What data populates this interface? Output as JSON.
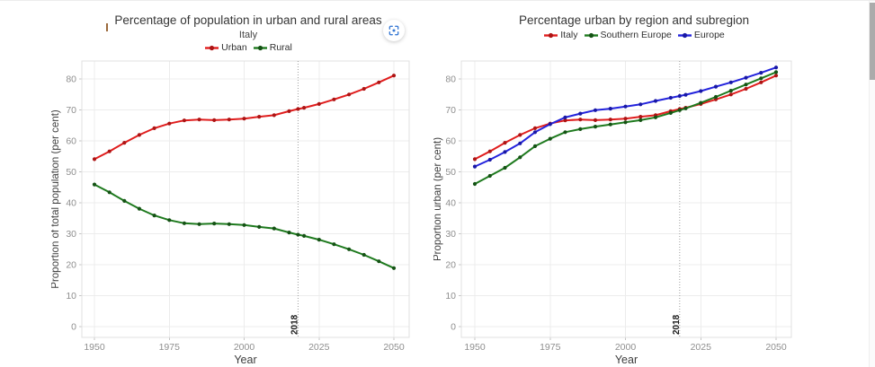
{
  "page": {
    "background": "#ffffff"
  },
  "controls": {
    "focus_button_icon": "focus-frame-icon",
    "focus_button_color": "#3a7bd5"
  },
  "chart_data": [
    {
      "type": "line",
      "title": "Percentage of population in urban and rural areas",
      "subtitle": "Italy",
      "xlabel": "Year",
      "ylabel": "Proportion of total population (per cent)",
      "xlim": [
        1950,
        2050
      ],
      "ylim": [
        0,
        80
      ],
      "xticks": [
        1950,
        1975,
        2000,
        2025,
        2050
      ],
      "yticks": [
        0,
        10,
        20,
        30,
        40,
        50,
        60,
        70,
        80
      ],
      "grid": true,
      "legend_position": "top",
      "vline": {
        "x": 2018,
        "label": "2018",
        "color": "#9e9e9e"
      },
      "x": [
        1950,
        1955,
        1960,
        1965,
        1970,
        1975,
        1980,
        1985,
        1990,
        1995,
        2000,
        2005,
        2010,
        2015,
        2018,
        2020,
        2025,
        2030,
        2035,
        2040,
        2045,
        2050
      ],
      "series": [
        {
          "name": "Urban",
          "color": "#e01d1d",
          "marker_color": "#ad1414",
          "values": [
            54.1,
            56.6,
            59.4,
            61.9,
            64.1,
            65.6,
            66.6,
            66.9,
            66.7,
            66.9,
            67.2,
            67.8,
            68.3,
            69.6,
            70.3,
            70.7,
            71.9,
            73.4,
            75.0,
            76.8,
            78.9,
            81.1
          ]
        },
        {
          "name": "Rural",
          "color": "#1e7a1e",
          "marker_color": "#145214",
          "values": [
            45.9,
            43.4,
            40.6,
            38.1,
            35.9,
            34.4,
            33.4,
            33.1,
            33.3,
            33.1,
            32.8,
            32.2,
            31.7,
            30.4,
            29.7,
            29.3,
            28.1,
            26.6,
            25.0,
            23.2,
            21.1,
            18.9
          ]
        }
      ]
    },
    {
      "type": "line",
      "title": "Percentage urban by region and subregion",
      "xlabel": "Year",
      "ylabel": "Proportion urban (per cent)",
      "xlim": [
        1950,
        2050
      ],
      "ylim": [
        0,
        80
      ],
      "xticks": [
        1950,
        1975,
        2000,
        2025,
        2050
      ],
      "yticks": [
        0,
        10,
        20,
        30,
        40,
        50,
        60,
        70,
        80
      ],
      "grid": true,
      "legend_position": "top",
      "vline": {
        "x": 2018,
        "label": "2018",
        "color": "#9e9e9e"
      },
      "x": [
        1950,
        1955,
        1960,
        1965,
        1970,
        1975,
        1980,
        1985,
        1990,
        1995,
        2000,
        2005,
        2010,
        2015,
        2018,
        2020,
        2025,
        2030,
        2035,
        2040,
        2045,
        2050
      ],
      "series": [
        {
          "name": "Italy",
          "color": "#e01d1d",
          "marker_color": "#ad1414",
          "values": [
            54.1,
            56.6,
            59.4,
            61.9,
            64.1,
            65.6,
            66.6,
            66.9,
            66.7,
            66.9,
            67.2,
            67.8,
            68.3,
            69.6,
            70.3,
            70.7,
            71.9,
            73.4,
            75.0,
            76.8,
            78.9,
            81.1
          ]
        },
        {
          "name": "Southern Europe",
          "color": "#1e7a1e",
          "marker_color": "#145214",
          "values": [
            46.1,
            48.7,
            51.3,
            54.7,
            58.3,
            60.7,
            62.8,
            63.8,
            64.6,
            65.3,
            66.0,
            66.7,
            67.6,
            69.0,
            69.9,
            70.5,
            72.3,
            74.2,
            76.2,
            78.2,
            80.2,
            82.2
          ]
        },
        {
          "name": "Europe",
          "color": "#2323dd",
          "marker_color": "#1818a5",
          "values": [
            51.7,
            53.9,
            56.4,
            59.2,
            62.8,
            65.4,
            67.6,
            68.8,
            69.9,
            70.4,
            71.1,
            71.8,
            72.9,
            73.9,
            74.5,
            74.9,
            76.1,
            77.5,
            78.9,
            80.4,
            82.0,
            83.7
          ]
        }
      ]
    }
  ]
}
